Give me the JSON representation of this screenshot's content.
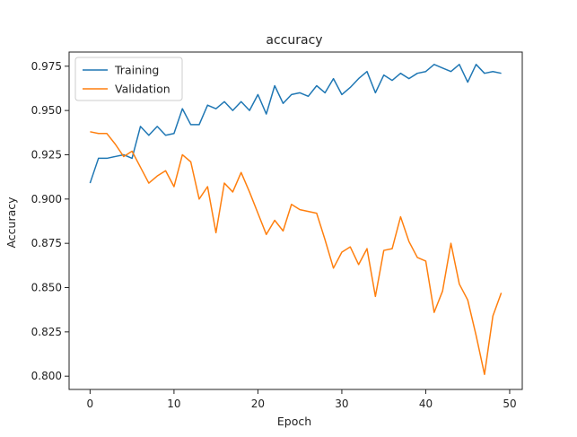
{
  "chart_data": {
    "type": "line",
    "title": "accuracy",
    "xlabel": "Epoch",
    "ylabel": "Accuracy",
    "xlim": [
      -2.5,
      51.5
    ],
    "ylim": [
      0.7925,
      0.983
    ],
    "xticks": [
      0,
      10,
      20,
      30,
      40,
      50
    ],
    "yticks": [
      0.8,
      0.825,
      0.85,
      0.875,
      0.9,
      0.925,
      0.95,
      0.975
    ],
    "ytick_labels": [
      "0.800",
      "0.825",
      "0.850",
      "0.875",
      "0.900",
      "0.925",
      "0.950",
      "0.975"
    ],
    "grid": false,
    "legend_position": "upper-left",
    "x": [
      0,
      1,
      2,
      3,
      4,
      5,
      6,
      7,
      8,
      9,
      10,
      11,
      12,
      13,
      14,
      15,
      16,
      17,
      18,
      19,
      20,
      21,
      22,
      23,
      24,
      25,
      26,
      27,
      28,
      29,
      30,
      31,
      32,
      33,
      34,
      35,
      36,
      37,
      38,
      39,
      40,
      41,
      42,
      43,
      44,
      45,
      46,
      47,
      48,
      49
    ],
    "series": [
      {
        "name": "Training",
        "color": "#1f77b4",
        "values": [
          0.909,
          0.923,
          0.923,
          0.924,
          0.925,
          0.923,
          0.941,
          0.936,
          0.941,
          0.936,
          0.937,
          0.951,
          0.942,
          0.942,
          0.953,
          0.951,
          0.955,
          0.95,
          0.955,
          0.95,
          0.959,
          0.948,
          0.964,
          0.954,
          0.959,
          0.96,
          0.958,
          0.964,
          0.96,
          0.968,
          0.959,
          0.963,
          0.968,
          0.972,
          0.96,
          0.97,
          0.967,
          0.971,
          0.968,
          0.971,
          0.972,
          0.976,
          0.974,
          0.972,
          0.976,
          0.966,
          0.976,
          0.971,
          0.972,
          0.971
        ]
      },
      {
        "name": "Validation",
        "color": "#ff7f0e",
        "values": [
          0.938,
          0.937,
          0.937,
          0.931,
          0.924,
          0.927,
          0.918,
          0.909,
          0.913,
          0.916,
          0.907,
          0.925,
          0.921,
          0.9,
          0.907,
          0.881,
          0.909,
          0.904,
          0.915,
          0.904,
          0.892,
          0.88,
          0.888,
          0.882,
          0.897,
          0.894,
          0.893,
          0.892,
          0.877,
          0.861,
          0.87,
          0.873,
          0.863,
          0.872,
          0.845,
          0.871,
          0.872,
          0.89,
          0.876,
          0.867,
          0.865,
          0.836,
          0.848,
          0.875,
          0.852,
          0.843,
          0.823,
          0.801,
          0.834,
          0.847
        ]
      }
    ]
  }
}
